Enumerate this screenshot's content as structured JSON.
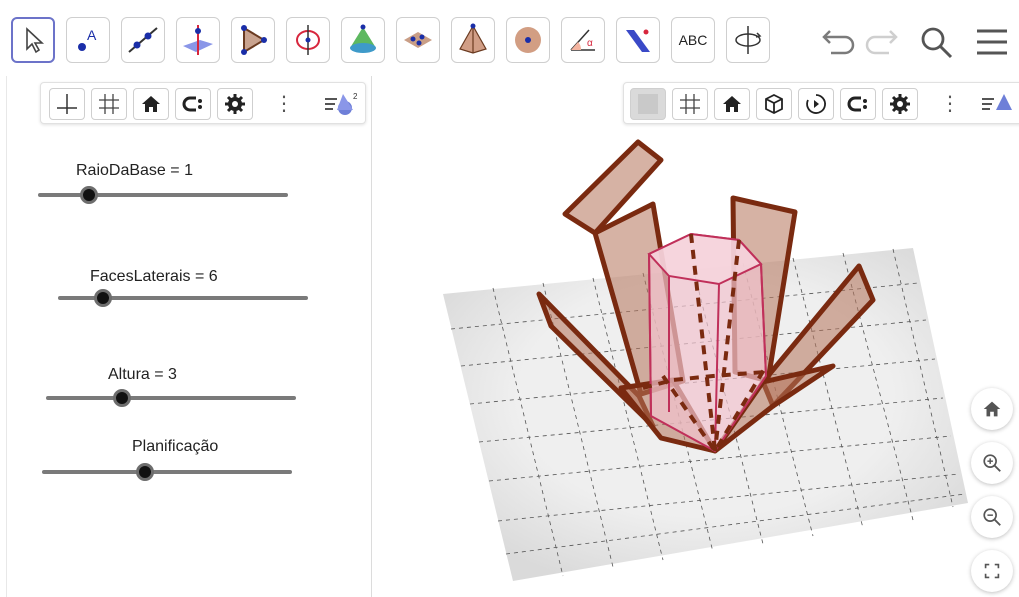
{
  "toolbar": {
    "tools": [
      {
        "icon": "move-arrow-icon",
        "active": true
      },
      {
        "icon": "point-icon",
        "label": "A"
      },
      {
        "icon": "line-icon"
      },
      {
        "icon": "perpendicular-line-icon"
      },
      {
        "icon": "polygon-icon"
      },
      {
        "icon": "circle-axis-icon"
      },
      {
        "icon": "cone-icon"
      },
      {
        "icon": "net-icon"
      },
      {
        "icon": "pyramid-icon"
      },
      {
        "icon": "sphere-icon"
      },
      {
        "icon": "angle-icon",
        "label": "α"
      },
      {
        "icon": "reflect-plane-icon"
      },
      {
        "icon": "text-icon",
        "label": "ABC"
      },
      {
        "icon": "rotate-view-icon"
      }
    ],
    "undo_icon": "undo-icon",
    "redo_icon": "redo-icon",
    "search_icon": "search-icon",
    "menu_icon": "menu-icon"
  },
  "sliders": [
    {
      "name": "RaioDaBase",
      "label": "RaioDaBase = 1",
      "value": 1,
      "fraction": 0.2
    },
    {
      "name": "FacesLaterais",
      "label": "FacesLaterais = 6",
      "value": 6,
      "fraction": 0.2
    },
    {
      "name": "Altura",
      "label": "Altura = 3",
      "value": 3,
      "fraction": 0.3
    },
    {
      "name": "Planificacao",
      "label": "Planificação",
      "fraction": 0.4
    }
  ],
  "stylebar_2d": [
    "axes-icon",
    "grid-icon",
    "home-icon",
    "point-capture-icon",
    "settings-icon",
    "more-icon",
    "graphics-view-icon"
  ],
  "stylebar_2d_view_badge": "2",
  "stylebar_3d": [
    "background-icon",
    "grid-icon",
    "home-icon",
    "cube-icon",
    "rotate-icon",
    "point-capture-icon",
    "settings-icon",
    "more-icon",
    "graphics3d-view-icon"
  ],
  "side_buttons": [
    "home-icon",
    "zoom-in-icon",
    "zoom-out-icon",
    "fullscreen-icon"
  ],
  "colors": {
    "accent": "#6c73c9",
    "prism_face": "#f2c3cf",
    "prism_edge": "#c0305a",
    "net_face": "#b5735a",
    "net_edge": "#7a2a10",
    "grid_floor": "#e9e9e9"
  }
}
